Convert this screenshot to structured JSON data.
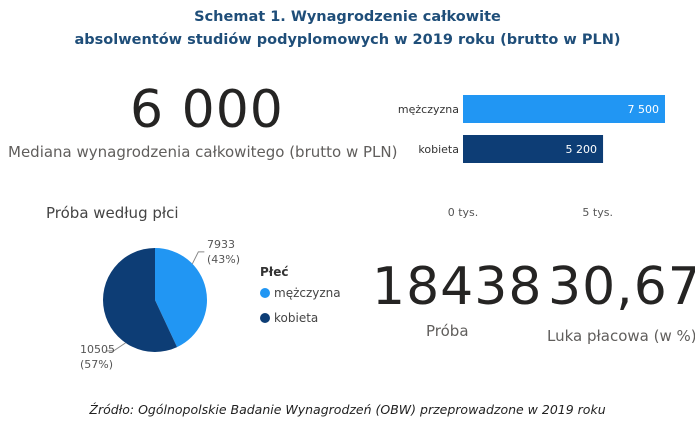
{
  "title": {
    "line1": "Schemat 1. Wynagrodzenie całkowite",
    "line2": "absolwentów studiów podyplomowych w 2019 roku (brutto w PLN)"
  },
  "median": {
    "value": "6 000",
    "label": "Mediana wynagrodzenia całkowitego (brutto w PLN)"
  },
  "sample": {
    "value": "18438",
    "label": "Próba"
  },
  "pay_gap": {
    "value": "30,67",
    "label": "Luka płacowa (w %)"
  },
  "pie_title": "Próba według płci",
  "legend": {
    "title": "Płeć",
    "items": [
      "mężczyzna",
      "kobieta"
    ]
  },
  "footer": "Źródło: Ogólnopolskie Badanie Wynagrodzeń (OBW) przeprowadzone w 2019 roku",
  "colors": {
    "male": "#2196f3",
    "female": "#0d3d75",
    "title": "#1f4e79"
  },
  "chart_data": [
    {
      "type": "bar",
      "orientation": "horizontal",
      "categories": [
        "mężczyzna",
        "kobieta"
      ],
      "values": [
        7500,
        5200
      ],
      "value_labels": [
        "7 500",
        "5 200"
      ],
      "xlim": [
        0,
        7500
      ],
      "xticks": [
        0,
        5000
      ],
      "xtick_labels": [
        "0 tys.",
        "5 tys."
      ]
    },
    {
      "type": "pie",
      "title": "Próba według płci",
      "categories": [
        "mężczyzna",
        "kobieta"
      ],
      "values": [
        7933,
        10505
      ],
      "value_labels": [
        "7933",
        "10505"
      ],
      "percent_labels": [
        "(43%)",
        "(57%)"
      ],
      "legend_title": "Płeć",
      "legend_position": "right"
    }
  ]
}
